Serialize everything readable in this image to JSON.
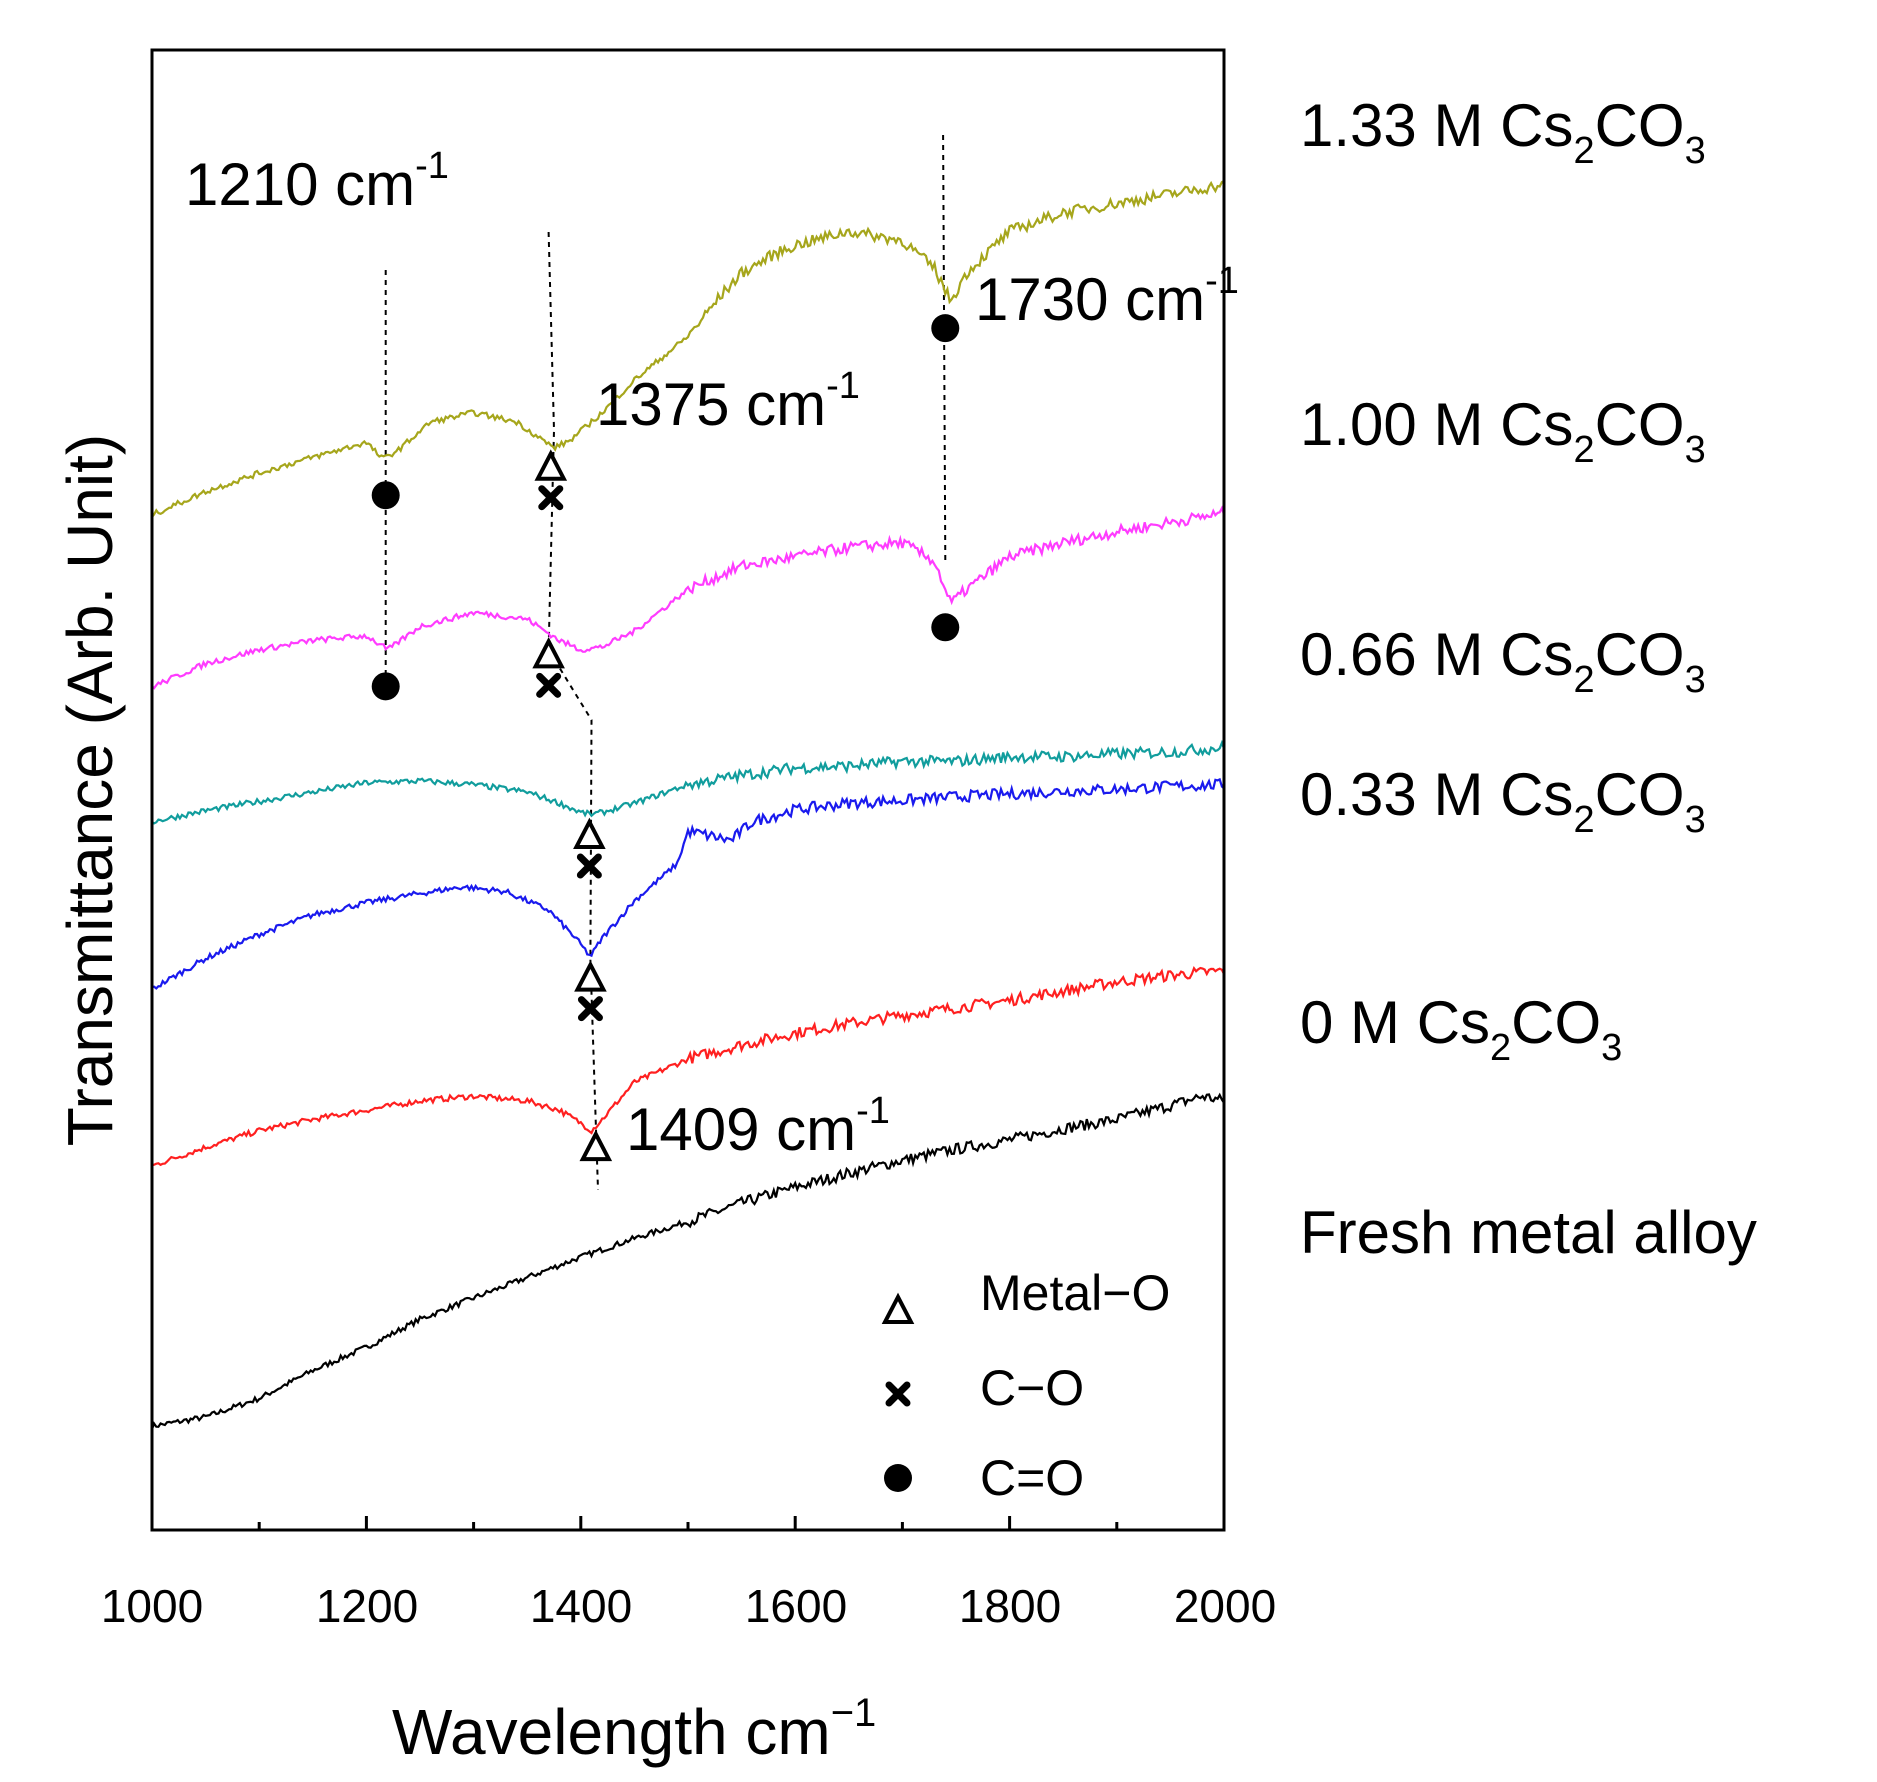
{
  "chart_data": {
    "type": "line",
    "title": "",
    "xlabel": "Wavelength cm",
    "xlabel_sup": "−1",
    "ylabel": "Transmittance (Arb. Unit)",
    "xlim": [
      1000,
      2000
    ],
    "x_ticks": [
      1000,
      1200,
      1400,
      1600,
      1800,
      2000
    ],
    "x_tick_labels": [
      "1000",
      "1200",
      "1400",
      "1600",
      "1800",
      "2000"
    ],
    "y_ticks_shown": false,
    "grid": false,
    "series": [
      {
        "name": "Fresh metal alloy",
        "color": "#000000",
        "offset": 0,
        "points": [
          [
            1000,
            90
          ],
          [
            1050,
            100
          ],
          [
            1100,
            120
          ],
          [
            1150,
            150
          ],
          [
            1200,
            175
          ],
          [
            1250,
            205
          ],
          [
            1300,
            228
          ],
          [
            1350,
            250
          ],
          [
            1400,
            272
          ],
          [
            1450,
            292
          ],
          [
            1500,
            310
          ],
          [
            1550,
            330
          ],
          [
            1600,
            347
          ],
          [
            1650,
            362
          ],
          [
            1700,
            376
          ],
          [
            1750,
            388
          ],
          [
            1800,
            398
          ],
          [
            1850,
            410
          ],
          [
            1900,
            420
          ],
          [
            1950,
            435
          ],
          [
            1980,
            445
          ],
          [
            2000,
            440
          ]
        ]
      },
      {
        "name": "0 M Cs2CO3",
        "color": "#ff2020",
        "offset": 290,
        "points": [
          [
            1000,
            80
          ],
          [
            1050,
            100
          ],
          [
            1100,
            118
          ],
          [
            1150,
            130
          ],
          [
            1200,
            140
          ],
          [
            1250,
            150
          ],
          [
            1300,
            155
          ],
          [
            1350,
            150
          ],
          [
            1380,
            140
          ],
          [
            1400,
            126
          ],
          [
            1410,
            118
          ],
          [
            1420,
            130
          ],
          [
            1450,
            170
          ],
          [
            1500,
            195
          ],
          [
            1550,
            210
          ],
          [
            1600,
            223
          ],
          [
            1650,
            233
          ],
          [
            1700,
            242
          ],
          [
            1750,
            250
          ],
          [
            1800,
            258
          ],
          [
            1850,
            268
          ],
          [
            1900,
            278
          ],
          [
            1950,
            285
          ],
          [
            2000,
            290
          ]
        ]
      },
      {
        "name": "0.33 M Cs2CO3",
        "color": "#1a1aee",
        "offset": 485,
        "points": [
          [
            1000,
            75
          ],
          [
            1050,
            108
          ],
          [
            1100,
            134
          ],
          [
            1150,
            155
          ],
          [
            1200,
            168
          ],
          [
            1250,
            178
          ],
          [
            1290,
            185
          ],
          [
            1330,
            180
          ],
          [
            1370,
            160
          ],
          [
            1395,
            130
          ],
          [
            1409,
            110
          ],
          [
            1420,
            130
          ],
          [
            1450,
            170
          ],
          [
            1490,
            210
          ],
          [
            1500,
            245
          ],
          [
            1520,
            240
          ],
          [
            1540,
            235
          ],
          [
            1560,
            255
          ],
          [
            1600,
            268
          ],
          [
            1650,
            275
          ],
          [
            1700,
            278
          ],
          [
            1750,
            282
          ],
          [
            1800,
            285
          ],
          [
            1850,
            288
          ],
          [
            1900,
            290
          ],
          [
            1950,
            293
          ],
          [
            2000,
            295
          ]
        ]
      },
      {
        "name": "0.66 M Cs2CO3",
        "color": "#119d9d",
        "offset": 680,
        "points": [
          [
            1000,
            60
          ],
          [
            1050,
            72
          ],
          [
            1100,
            82
          ],
          [
            1150,
            92
          ],
          [
            1200,
            102
          ],
          [
            1250,
            104
          ],
          [
            1300,
            100
          ],
          [
            1350,
            92
          ],
          [
            1380,
            80
          ],
          [
            1400,
            70
          ],
          [
            1410,
            68
          ],
          [
            1420,
            70
          ],
          [
            1450,
            80
          ],
          [
            1500,
            100
          ],
          [
            1550,
            110
          ],
          [
            1600,
            118
          ],
          [
            1650,
            120
          ],
          [
            1700,
            125
          ],
          [
            1750,
            125
          ],
          [
            1800,
            130
          ],
          [
            1850,
            130
          ],
          [
            1900,
            133
          ],
          [
            1950,
            135
          ],
          [
            2000,
            140
          ]
        ]
      },
      {
        "name": "1.00 M Cs2CO3",
        "color": "#ff3cff",
        "offset": 840,
        "points": [
          [
            1000,
            45
          ],
          [
            1050,
            70
          ],
          [
            1100,
            85
          ],
          [
            1150,
            95
          ],
          [
            1200,
            100
          ],
          [
            1220,
            85
          ],
          [
            1250,
            110
          ],
          [
            1300,
            125
          ],
          [
            1350,
            118
          ],
          [
            1380,
            95
          ],
          [
            1400,
            85
          ],
          [
            1420,
            88
          ],
          [
            1450,
            105
          ],
          [
            1500,
            150
          ],
          [
            1550,
            175
          ],
          [
            1600,
            185
          ],
          [
            1650,
            195
          ],
          [
            1700,
            200
          ],
          [
            1730,
            180
          ],
          [
            1745,
            135
          ],
          [
            1760,
            150
          ],
          [
            1800,
            185
          ],
          [
            1850,
            200
          ],
          [
            1900,
            212
          ],
          [
            1950,
            222
          ],
          [
            2000,
            232
          ]
        ]
      },
      {
        "name": "1.33 M Cs2CO3",
        "color": "#a6a61c",
        "offset": 1030,
        "points": [
          [
            1000,
            40
          ],
          [
            1050,
            65
          ],
          [
            1100,
            85
          ],
          [
            1150,
            102
          ],
          [
            1200,
            118
          ],
          [
            1215,
            100
          ],
          [
            1230,
            110
          ],
          [
            1260,
            140
          ],
          [
            1300,
            150
          ],
          [
            1340,
            140
          ],
          [
            1375,
            112
          ],
          [
            1390,
            120
          ],
          [
            1420,
            150
          ],
          [
            1450,
            185
          ],
          [
            1500,
            232
          ],
          [
            1530,
            275
          ],
          [
            1550,
            300
          ],
          [
            1580,
            320
          ],
          [
            1600,
            330
          ],
          [
            1650,
            345
          ],
          [
            1700,
            335
          ],
          [
            1730,
            305
          ],
          [
            1745,
            270
          ],
          [
            1760,
            300
          ],
          [
            1800,
            345
          ],
          [
            1850,
            365
          ],
          [
            1900,
            375
          ],
          [
            1950,
            385
          ],
          [
            2000,
            395
          ]
        ]
      }
    ],
    "series_labels": [
      {
        "prefix": "1.33 M Cs",
        "sub1": "2",
        "mid": "CO",
        "sub2": "3"
      },
      {
        "prefix": "1.00 M Cs",
        "sub1": "2",
        "mid": "CO",
        "sub2": "3"
      },
      {
        "prefix": "0.66 M Cs",
        "sub1": "2",
        "mid": "CO",
        "sub2": "3"
      },
      {
        "prefix": "0.33 M Cs",
        "sub1": "2",
        "mid": "CO",
        "sub2": "3"
      },
      {
        "prefix": "0 M Cs",
        "sub1": "2",
        "mid": "CO",
        "sub2": "3"
      },
      {
        "prefix": "Fresh metal alloy",
        "sub1": "",
        "mid": "",
        "sub2": ""
      }
    ],
    "peak_annotations": [
      {
        "value": "1210",
        "unit": "cm",
        "exp": "-1"
      },
      {
        "value": "1375",
        "unit": "cm",
        "exp": "-1"
      },
      {
        "value": "1730",
        "unit": "cm",
        "exp": "-1"
      },
      {
        "value": "1409",
        "unit": "cm",
        "exp": "-1"
      }
    ],
    "markers": [
      {
        "type": "circle",
        "series": "1.33 M Cs2CO3",
        "x": 1218
      },
      {
        "type": "triangle",
        "series": "1.33 M Cs2CO3",
        "x": 1372
      },
      {
        "type": "cross",
        "series": "1.33 M Cs2CO3",
        "x": 1372
      },
      {
        "type": "circle",
        "series": "1.33 M Cs2CO3",
        "x": 1740
      },
      {
        "type": "circle",
        "series": "1.00 M Cs2CO3",
        "x": 1218
      },
      {
        "type": "triangle",
        "series": "1.00 M Cs2CO3",
        "x": 1370
      },
      {
        "type": "cross",
        "series": "1.00 M Cs2CO3",
        "x": 1370
      },
      {
        "type": "circle",
        "series": "1.00 M Cs2CO3",
        "x": 1740
      },
      {
        "type": "triangle",
        "series": "0.66 M Cs2CO3",
        "x": 1408
      },
      {
        "type": "cross",
        "series": "0.66 M Cs2CO3",
        "x": 1408
      },
      {
        "type": "triangle",
        "series": "0.33 M Cs2CO3",
        "x": 1409
      },
      {
        "type": "cross",
        "series": "0.33 M Cs2CO3",
        "x": 1409
      },
      {
        "type": "triangle",
        "series": "0 M Cs2CO3",
        "x": 1414
      }
    ],
    "legend": [
      {
        "marker": "triangle",
        "label": "Metal−O"
      },
      {
        "marker": "cross",
        "label": "C−O"
      },
      {
        "marker": "circle",
        "label": "C=O"
      }
    ],
    "legend_position": "bottom-right"
  }
}
